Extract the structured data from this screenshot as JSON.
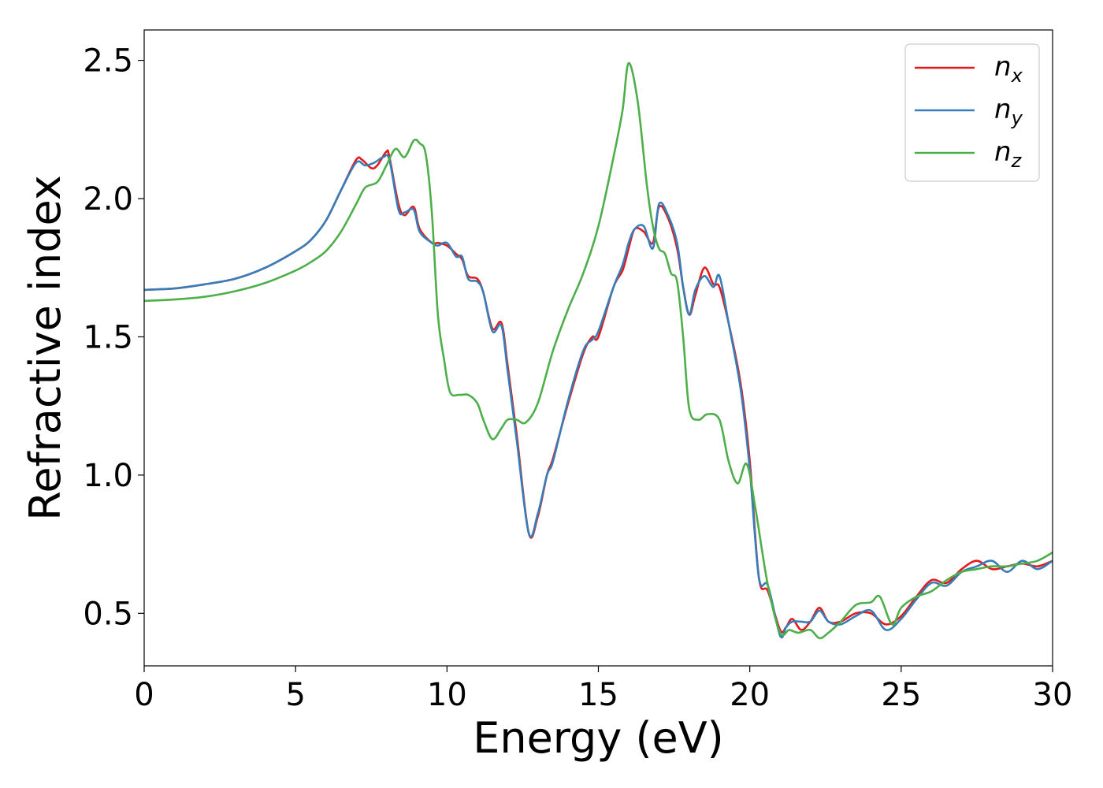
{
  "chart_data": {
    "type": "line",
    "title": "",
    "xlabel": "Energy (eV)",
    "ylabel": "Refractive index",
    "xlim": [
      0,
      30
    ],
    "ylim": [
      0.31,
      2.61
    ],
    "xticks": [
      0,
      5,
      10,
      15,
      20,
      25,
      30
    ],
    "xtick_labels": [
      "0",
      "5",
      "10",
      "15",
      "20",
      "25",
      "30"
    ],
    "yticks": [
      0.5,
      1.0,
      1.5,
      2.0,
      2.5
    ],
    "ytick_labels": [
      "0.5",
      "1.0",
      "1.5",
      "2.0",
      "2.5"
    ],
    "grid": false,
    "legend_position": "top-right",
    "series": [
      {
        "name": "n",
        "subscript": "x",
        "color": "#e41a1c",
        "x": [
          0,
          1,
          2,
          3,
          4,
          5,
          5.5,
          6,
          6.5,
          7,
          7.2,
          7.5,
          7.7,
          8,
          8.1,
          8.4,
          8.6,
          8.9,
          9.1,
          9.5,
          9.7,
          10,
          10.3,
          10.5,
          10.7,
          11,
          11.2,
          11.5,
          11.8,
          12,
          12.3,
          12.7,
          13,
          13.3,
          13.5,
          14,
          14.5,
          14.8,
          15,
          15.5,
          15.8,
          16,
          16.2,
          16.5,
          16.8,
          17,
          17.3,
          17.6,
          17.8,
          18,
          18.2,
          18.5,
          18.8,
          19,
          19.3,
          19.7,
          20,
          20.3,
          20.6,
          21,
          21.2,
          21.4,
          21.7,
          22,
          22.3,
          22.6,
          23,
          23.5,
          24,
          24.5,
          25,
          25.5,
          26,
          26.5,
          27,
          27.5,
          28,
          28.5,
          29,
          29.5,
          30
        ],
        "y": [
          1.67,
          1.675,
          1.69,
          1.71,
          1.75,
          1.81,
          1.85,
          1.92,
          2.03,
          2.14,
          2.14,
          2.11,
          2.12,
          2.17,
          2.15,
          1.98,
          1.94,
          1.97,
          1.89,
          1.84,
          1.84,
          1.83,
          1.8,
          1.78,
          1.72,
          1.71,
          1.66,
          1.53,
          1.55,
          1.4,
          1.15,
          0.79,
          0.85,
          1.0,
          1.06,
          1.26,
          1.44,
          1.5,
          1.5,
          1.68,
          1.74,
          1.82,
          1.89,
          1.88,
          1.84,
          1.97,
          1.93,
          1.82,
          1.68,
          1.58,
          1.65,
          1.75,
          1.69,
          1.68,
          1.55,
          1.33,
          1.05,
          0.63,
          0.58,
          0.44,
          0.45,
          0.48,
          0.44,
          0.47,
          0.52,
          0.47,
          0.47,
          0.5,
          0.5,
          0.46,
          0.49,
          0.56,
          0.62,
          0.61,
          0.66,
          0.69,
          0.66,
          0.67,
          0.68,
          0.67,
          0.69
        ]
      },
      {
        "name": "n",
        "subscript": "y",
        "color": "#377eb8",
        "x": [
          0,
          1,
          2,
          3,
          4,
          5,
          5.5,
          6,
          6.5,
          7,
          7.3,
          7.6,
          7.9,
          8.1,
          8.4,
          8.6,
          8.9,
          9.1,
          9.5,
          9.7,
          10,
          10.3,
          10.5,
          10.7,
          11,
          11.2,
          11.5,
          11.8,
          12,
          12.3,
          12.7,
          13,
          13.3,
          13.5,
          14,
          14.5,
          14.8,
          15,
          15.5,
          15.8,
          16,
          16.2,
          16.5,
          16.8,
          17,
          17.3,
          17.6,
          17.8,
          18,
          18.2,
          18.5,
          18.8,
          19,
          19.3,
          19.7,
          20,
          20.3,
          20.6,
          21,
          21.2,
          21.4,
          21.7,
          22,
          22.3,
          22.6,
          23,
          23.5,
          24,
          24.5,
          25,
          25.5,
          26,
          26.5,
          27,
          27.5,
          28,
          28.5,
          29,
          29.5,
          30
        ],
        "y": [
          1.67,
          1.675,
          1.69,
          1.71,
          1.75,
          1.81,
          1.85,
          1.92,
          2.03,
          2.13,
          2.12,
          2.13,
          2.15,
          2.14,
          1.96,
          1.95,
          1.96,
          1.88,
          1.84,
          1.83,
          1.84,
          1.79,
          1.79,
          1.71,
          1.7,
          1.66,
          1.52,
          1.54,
          1.38,
          1.13,
          0.79,
          0.86,
          1.0,
          1.05,
          1.27,
          1.45,
          1.49,
          1.52,
          1.68,
          1.76,
          1.84,
          1.89,
          1.9,
          1.82,
          1.98,
          1.94,
          1.84,
          1.68,
          1.58,
          1.67,
          1.72,
          1.68,
          1.72,
          1.55,
          1.31,
          1.02,
          0.63,
          0.6,
          0.42,
          0.45,
          0.47,
          0.47,
          0.47,
          0.51,
          0.47,
          0.46,
          0.49,
          0.51,
          0.44,
          0.48,
          0.55,
          0.61,
          0.6,
          0.65,
          0.67,
          0.69,
          0.65,
          0.69,
          0.66,
          0.69
        ]
      },
      {
        "name": "n",
        "subscript": "z",
        "color": "#4daf4a",
        "x": [
          0,
          1,
          2,
          3,
          4,
          5,
          5.5,
          6,
          6.5,
          7,
          7.3,
          7.7,
          8,
          8.3,
          8.6,
          8.9,
          9.1,
          9.3,
          9.5,
          9.7,
          9.9,
          10.1,
          10.4,
          10.7,
          11,
          11.2,
          11.5,
          11.8,
          12,
          12.3,
          12.6,
          13,
          13.5,
          14,
          14.5,
          15,
          15.5,
          15.8,
          16,
          16.3,
          16.6,
          16.8,
          17,
          17.2,
          17.4,
          17.6,
          17.8,
          18,
          18.3,
          18.6,
          19,
          19.3,
          19.6,
          19.9,
          20.2,
          20.6,
          21,
          21.3,
          21.6,
          22,
          22.3,
          22.6,
          23,
          23.5,
          24,
          24.3,
          24.7,
          25,
          25.5,
          26,
          26.5,
          27,
          27.5,
          28,
          28.5,
          29,
          29.5,
          30
        ],
        "y": [
          1.63,
          1.635,
          1.645,
          1.665,
          1.695,
          1.74,
          1.77,
          1.81,
          1.88,
          1.98,
          2.04,
          2.06,
          2.12,
          2.18,
          2.15,
          2.21,
          2.2,
          2.16,
          1.95,
          1.58,
          1.42,
          1.3,
          1.29,
          1.29,
          1.26,
          1.2,
          1.13,
          1.17,
          1.2,
          1.2,
          1.19,
          1.26,
          1.45,
          1.6,
          1.73,
          1.9,
          2.15,
          2.32,
          2.49,
          2.35,
          2.05,
          1.9,
          1.82,
          1.8,
          1.73,
          1.7,
          1.5,
          1.24,
          1.2,
          1.22,
          1.2,
          1.05,
          0.97,
          1.04,
          0.87,
          0.6,
          0.43,
          0.44,
          0.43,
          0.44,
          0.41,
          0.43,
          0.47,
          0.53,
          0.54,
          0.56,
          0.46,
          0.52,
          0.56,
          0.58,
          0.62,
          0.65,
          0.66,
          0.67,
          0.67,
          0.68,
          0.69,
          0.72
        ]
      }
    ]
  }
}
